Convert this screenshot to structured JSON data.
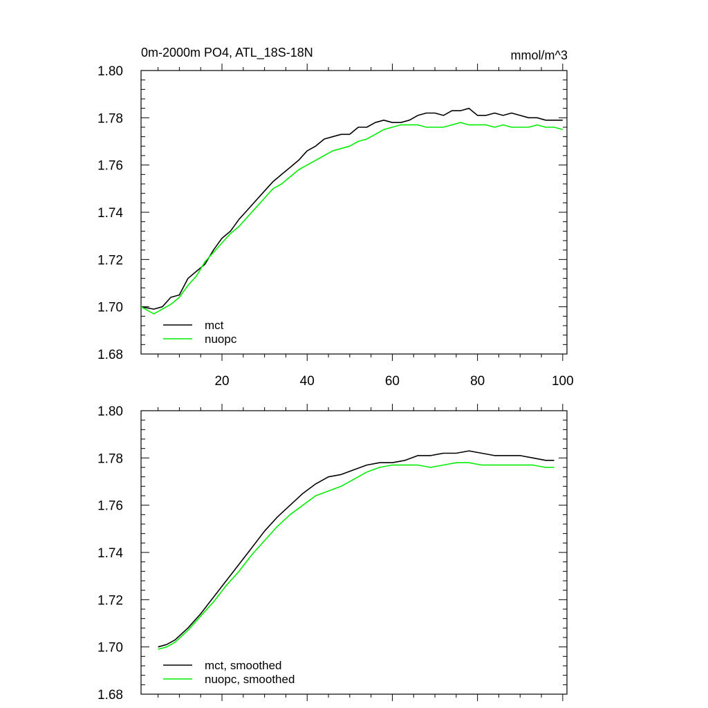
{
  "title_left": "0m-2000m PO4, ATL_18S-18N",
  "title_right": "mmol/m^3",
  "colors": {
    "mct": "#000000",
    "nuopc": "#00ee00"
  },
  "chart_data": [
    {
      "type": "line",
      "title": "0m-2000m PO4, ATL_18S-18N",
      "units": "mmol/m^3",
      "xlim": [
        1,
        101
      ],
      "ylim": [
        1.68,
        1.8
      ],
      "xticks": [
        20,
        40,
        60,
        80,
        100
      ],
      "yticks": [
        1.68,
        1.7,
        1.72,
        1.74,
        1.76,
        1.78,
        1.8
      ],
      "legend_position": "bottom-left",
      "series": [
        {
          "name": "mct",
          "color": "#000000",
          "x": [
            1,
            4,
            6,
            8,
            10,
            12,
            14,
            16,
            18,
            20,
            22,
            24,
            26,
            28,
            30,
            32,
            34,
            36,
            38,
            40,
            42,
            44,
            46,
            48,
            50,
            52,
            54,
            56,
            58,
            60,
            62,
            64,
            66,
            68,
            70,
            72,
            74,
            76,
            78,
            80,
            82,
            84,
            86,
            88,
            90,
            92,
            94,
            96,
            98,
            100
          ],
          "values": [
            1.7,
            1.699,
            1.7,
            1.704,
            1.705,
            1.712,
            1.715,
            1.718,
            1.724,
            1.729,
            1.732,
            1.737,
            1.741,
            1.745,
            1.749,
            1.753,
            1.756,
            1.759,
            1.762,
            1.766,
            1.768,
            1.771,
            1.772,
            1.773,
            1.773,
            1.776,
            1.776,
            1.778,
            1.779,
            1.778,
            1.778,
            1.779,
            1.781,
            1.782,
            1.782,
            1.781,
            1.783,
            1.783,
            1.784,
            1.781,
            1.781,
            1.782,
            1.781,
            1.782,
            1.781,
            1.78,
            1.78,
            1.779,
            1.779,
            1.779
          ]
        },
        {
          "name": "nuopc",
          "color": "#00ee00",
          "x": [
            1,
            4,
            6,
            8,
            10,
            12,
            14,
            16,
            18,
            20,
            22,
            24,
            26,
            28,
            30,
            32,
            34,
            36,
            38,
            40,
            42,
            44,
            46,
            48,
            50,
            52,
            54,
            56,
            58,
            60,
            62,
            64,
            66,
            68,
            70,
            72,
            74,
            76,
            78,
            80,
            82,
            84,
            86,
            88,
            90,
            92,
            94,
            96,
            98,
            100
          ],
          "values": [
            1.7,
            1.697,
            1.699,
            1.701,
            1.704,
            1.709,
            1.713,
            1.719,
            1.723,
            1.727,
            1.731,
            1.734,
            1.738,
            1.742,
            1.746,
            1.75,
            1.752,
            1.755,
            1.758,
            1.76,
            1.762,
            1.764,
            1.766,
            1.767,
            1.768,
            1.77,
            1.771,
            1.773,
            1.775,
            1.776,
            1.777,
            1.777,
            1.777,
            1.776,
            1.776,
            1.776,
            1.777,
            1.778,
            1.777,
            1.777,
            1.777,
            1.776,
            1.777,
            1.776,
            1.776,
            1.776,
            1.777,
            1.776,
            1.776,
            1.775
          ]
        }
      ]
    },
    {
      "type": "line",
      "xlim": [
        1,
        101
      ],
      "ylim": [
        1.68,
        1.8
      ],
      "yticks": [
        1.68,
        1.7,
        1.72,
        1.74,
        1.76,
        1.78,
        1.8
      ],
      "legend_position": "bottom-left",
      "series": [
        {
          "name": "mct, smoothed",
          "color": "#000000",
          "x": [
            5,
            7,
            9,
            12,
            15,
            18,
            21,
            24,
            27,
            30,
            33,
            36,
            39,
            42,
            45,
            48,
            51,
            54,
            57,
            60,
            63,
            66,
            69,
            72,
            75,
            78,
            81,
            84,
            87,
            90,
            93,
            96,
            98
          ],
          "values": [
            1.7,
            1.701,
            1.703,
            1.708,
            1.714,
            1.721,
            1.728,
            1.735,
            1.742,
            1.749,
            1.755,
            1.76,
            1.765,
            1.769,
            1.772,
            1.773,
            1.775,
            1.777,
            1.778,
            1.778,
            1.779,
            1.781,
            1.781,
            1.782,
            1.782,
            1.783,
            1.782,
            1.781,
            1.781,
            1.781,
            1.78,
            1.779,
            1.779
          ]
        },
        {
          "name": "nuopc, smoothed",
          "color": "#00ee00",
          "x": [
            5,
            7,
            9,
            12,
            15,
            18,
            21,
            24,
            27,
            30,
            33,
            36,
            39,
            42,
            45,
            48,
            51,
            54,
            57,
            60,
            63,
            66,
            69,
            72,
            75,
            78,
            81,
            84,
            87,
            90,
            93,
            96,
            98
          ],
          "values": [
            1.699,
            1.7,
            1.702,
            1.707,
            1.713,
            1.719,
            1.726,
            1.732,
            1.739,
            1.745,
            1.751,
            1.756,
            1.76,
            1.764,
            1.766,
            1.768,
            1.771,
            1.774,
            1.776,
            1.777,
            1.777,
            1.777,
            1.776,
            1.777,
            1.778,
            1.778,
            1.777,
            1.777,
            1.777,
            1.777,
            1.777,
            1.776,
            1.776
          ]
        }
      ]
    }
  ]
}
